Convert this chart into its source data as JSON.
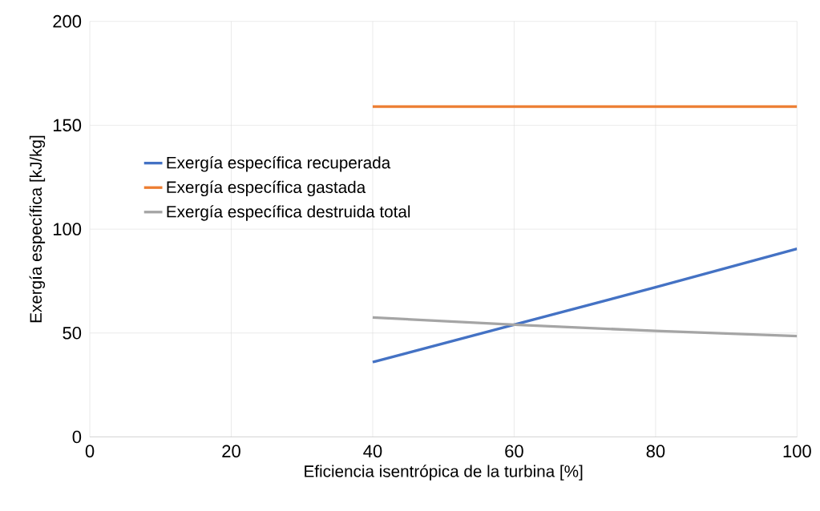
{
  "chart_data": {
    "type": "line",
    "xlabel": "Eficiencia isentrópica de la turbina [%]",
    "ylabel": "Exergía específica [kJ/kg]",
    "x": [
      40,
      60,
      80,
      100
    ],
    "series": [
      {
        "name": "Exergía específica recuperada",
        "color": "#4472c4",
        "values": [
          36,
          54,
          72,
          90.5
        ]
      },
      {
        "name": "Exergía específica gastada",
        "color": "#ed7d31",
        "values": [
          159,
          159,
          159,
          159
        ]
      },
      {
        "name": "Exergía específica destruida total",
        "color": "#a5a5a5",
        "values": [
          57.5,
          54,
          51,
          48.5
        ]
      }
    ],
    "xlim": [
      0,
      100
    ],
    "ylim": [
      0,
      200
    ],
    "xticks": [
      0,
      20,
      40,
      60,
      80,
      100
    ],
    "yticks": [
      0,
      50,
      100,
      150,
      200
    ],
    "grid": true,
    "legend": "left",
    "marker": "none",
    "line_style": "solid"
  }
}
